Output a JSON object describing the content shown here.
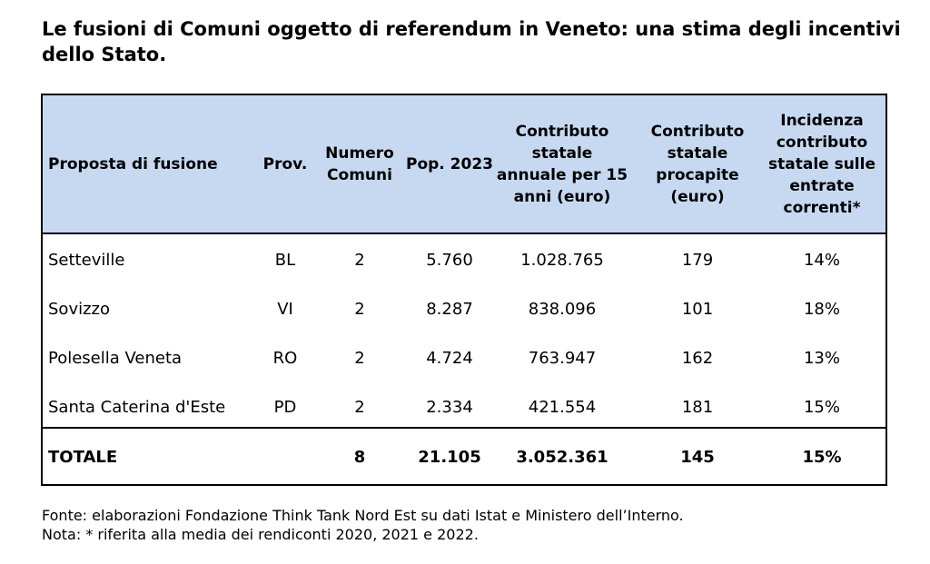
{
  "title": "Le fusioni di Comuni oggetto di referendum in Veneto: una stima degli incentivi dello Stato.",
  "table": {
    "headers": [
      "Proposta di fusione",
      "Prov.",
      "Numero Comuni",
      "Pop. 2023",
      "Contributo statale annuale per 15 anni (euro)",
      "Contributo statale procapite (euro)",
      "Incidenza contributo statale sulle entrate correnti*"
    ],
    "rows": [
      [
        "Setteville",
        "BL",
        "2",
        "5.760",
        "1.028.765",
        "179",
        "14%"
      ],
      [
        "Sovizzo",
        "VI",
        "2",
        "8.287",
        "838.096",
        "101",
        "18%"
      ],
      [
        "Polesella Veneta",
        "RO",
        "2",
        "4.724",
        "763.947",
        "162",
        "13%"
      ],
      [
        "Santa Caterina d'Este",
        "PD",
        "2",
        "2.334",
        "421.554",
        "181",
        "15%"
      ]
    ],
    "total": [
      "TOTALE",
      "",
      "8",
      "21.105",
      "3.052.361",
      "145",
      "15%"
    ],
    "header_bg": "#c6d9f0"
  },
  "footnotes": {
    "source": "Fonte: elaborazioni Fondazione Think Tank Nord Est su dati Istat e Ministero dell’Interno.",
    "note": "Nota: * riferita alla media dei rendiconti 2020, 2021 e 2022."
  }
}
